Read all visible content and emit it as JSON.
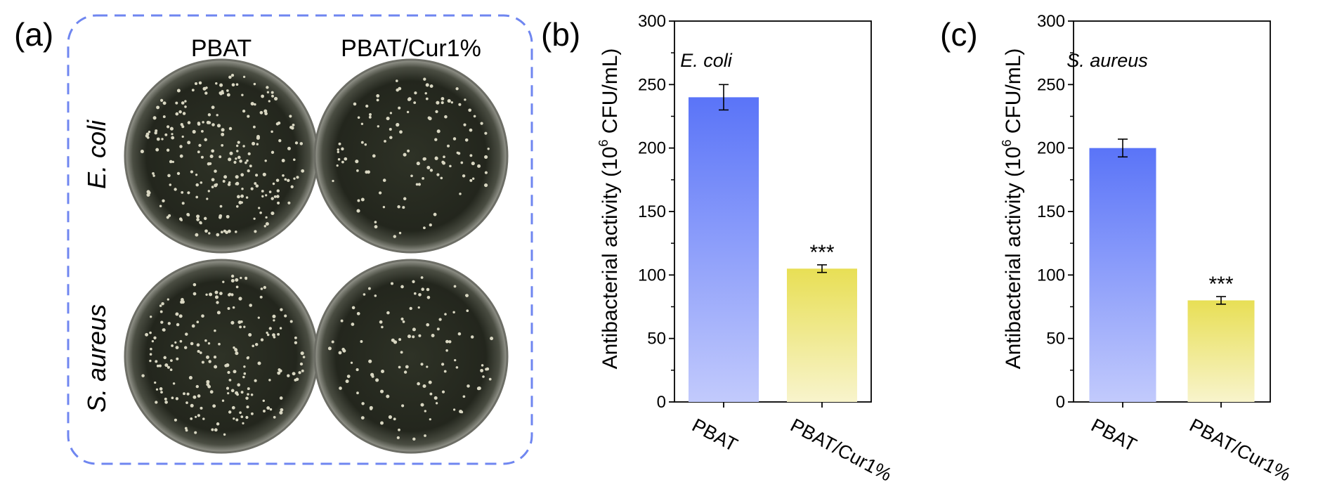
{
  "panel_a": {
    "label": "(a)",
    "columns": [
      "PBAT",
      "PBAT/Cur1%"
    ],
    "rows": [
      "E. coli",
      "S. aureus"
    ],
    "frame_color": "#6f86f0",
    "dish_colonies": [
      230,
      120,
      200,
      110
    ]
  },
  "panel_b": {
    "label": "(b)",
    "annotation": "E. coli",
    "significance": "***",
    "chart_data": {
      "type": "bar",
      "categories": [
        "PBAT",
        "PBAT/Cur1%"
      ],
      "values": [
        240,
        105
      ],
      "errors": [
        10,
        3
      ],
      "title": "",
      "xlabel": "",
      "ylabel_prefix": "Antibacterial activity (10",
      "ylabel_sup": "6",
      "ylabel_suffix": " CFU/mL)",
      "ylim": [
        0,
        300
      ],
      "yticks": [
        "0",
        "50",
        "100",
        "150",
        "200",
        "250",
        "300"
      ],
      "colors": [
        "#5a74f8",
        "#eae15a"
      ]
    }
  },
  "panel_c": {
    "label": "(c)",
    "annotation": "S. aureus",
    "significance": "***",
    "chart_data": {
      "type": "bar",
      "categories": [
        "PBAT",
        "PBAT/Cur1%"
      ],
      "values": [
        200,
        80
      ],
      "errors": [
        7,
        3
      ],
      "title": "",
      "xlabel": "",
      "ylabel_prefix": "Antibacterial activity (10",
      "ylabel_sup": "6",
      "ylabel_suffix": " CFU/mL)",
      "ylim": [
        0,
        300
      ],
      "yticks": [
        "0",
        "50",
        "100",
        "150",
        "200",
        "250",
        "300"
      ],
      "colors": [
        "#5a74f8",
        "#eae15a"
      ]
    }
  }
}
